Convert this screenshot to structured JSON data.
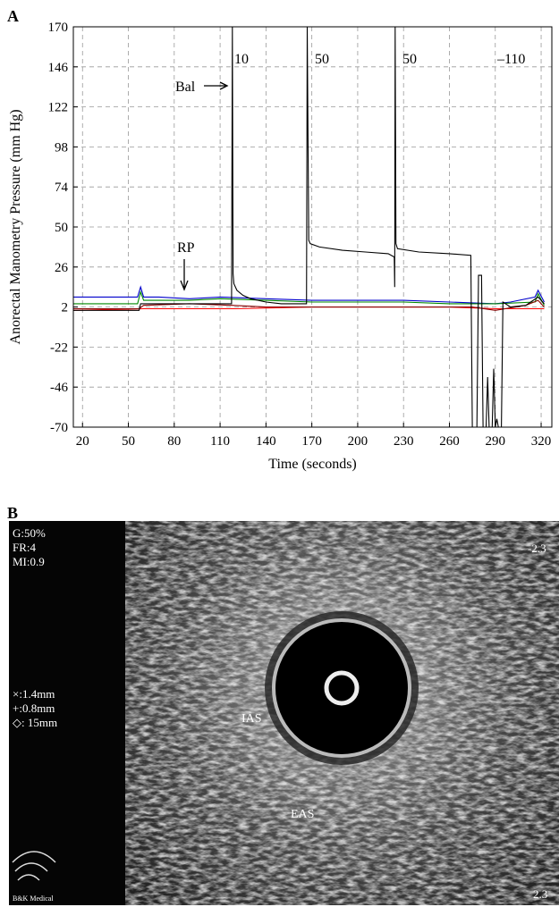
{
  "panel_labels": [
    "A",
    "B"
  ],
  "chart_data": {
    "type": "line",
    "ylabel": "Anorectal Manometry Pressure (mm Hg)",
    "xlabel": "Time (seconds)",
    "xlim": [
      14,
      327
    ],
    "xticks": [
      20,
      50,
      80,
      110,
      140,
      170,
      200,
      230,
      260,
      290,
      320
    ],
    "ylim": [
      -70,
      170
    ],
    "yticks": [
      170,
      146,
      122,
      98,
      74,
      50,
      26,
      2,
      -22,
      -46,
      -70
    ],
    "grid": true,
    "annotations": [
      "10",
      "50",
      "50",
      "–110",
      "Bal",
      "RP"
    ],
    "series": [
      {
        "color": "#0000cc",
        "x": [
          14,
          56,
          58,
          60,
          70,
          90,
          110,
          140,
          170,
          200,
          230,
          260,
          290,
          300,
          316,
          318,
          322
        ],
        "values": [
          8,
          8,
          14,
          8,
          8,
          7,
          8,
          7,
          6,
          6,
          6,
          5,
          4,
          5,
          8,
          12,
          5
        ]
      },
      {
        "color": "#008800",
        "x": [
          14,
          56,
          58,
          60,
          90,
          110,
          140,
          170,
          200,
          230,
          260,
          290,
          316,
          318,
          322
        ],
        "values": [
          4,
          4,
          11,
          6,
          6,
          7,
          6,
          5,
          5,
          5,
          4,
          4,
          5,
          10,
          3
        ]
      },
      {
        "color": "#ff0000",
        "x": [
          14,
          60,
          120,
          170,
          200,
          230,
          260,
          290,
          322
        ],
        "values": [
          0,
          1,
          1,
          2,
          2,
          2,
          2,
          1,
          1
        ]
      },
      {
        "color": "#880000",
        "x": [
          14,
          57,
          60,
          90,
          118,
          140,
          167,
          200,
          230,
          275,
          290,
          310,
          318,
          322
        ],
        "values": [
          1,
          1,
          3,
          4,
          3,
          2,
          2,
          2,
          2,
          2,
          0,
          3,
          6,
          2
        ]
      },
      {
        "color": "#000000",
        "x": [
          14,
          57,
          58,
          117.5,
          118,
          118.5,
          119,
          121,
          125,
          130,
          140,
          150,
          166.5,
          167,
          168,
          169,
          175,
          190,
          205,
          220,
          223.9,
          224.2,
          224.5,
          225,
          226,
          240,
          260,
          274,
          275,
          278,
          279,
          281,
          282,
          284,
          285,
          286,
          288,
          289,
          290,
          291,
          292,
          294,
          295,
          300,
          310,
          318,
          322
        ],
        "values": [
          0,
          0,
          4,
          4,
          170,
          22,
          16,
          12,
          9,
          7,
          5,
          4,
          4,
          170,
          42,
          40,
          38,
          36,
          35,
          34,
          32,
          14,
          170,
          40,
          37,
          35,
          34,
          33,
          -70,
          -70,
          21,
          21,
          -70,
          -70,
          -40,
          -70,
          -70,
          -35,
          -70,
          -65,
          -70,
          -70,
          5,
          2,
          3,
          8,
          4
        ]
      }
    ]
  },
  "ultrasound": {
    "settings": [
      "G:50%",
      "FR:4",
      "MI:0.9"
    ],
    "measures": [
      "×:1.4mm",
      "+:0.8mm",
      "◇: 15mm"
    ],
    "labels": [
      "IAS",
      "EAS"
    ],
    "corner_top": "-2.3",
    "corner_bottom": "2.3",
    "brand": "B&K Medical"
  }
}
